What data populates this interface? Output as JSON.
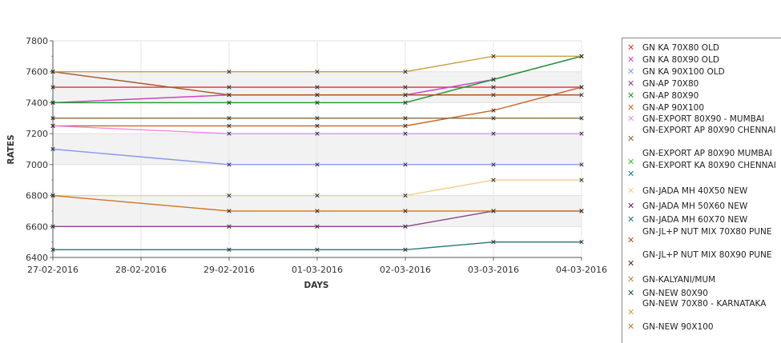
{
  "chart_data": {
    "type": "line",
    "xlabel": "DAYS",
    "ylabel": "RATES",
    "ylim": [
      6400,
      7800
    ],
    "yticks": [
      6400,
      6600,
      6800,
      7000,
      7200,
      7400,
      7600,
      7800
    ],
    "categories": [
      "27-02-2016",
      "28-02-2016",
      "29-02-2016",
      "01-03-2016",
      "02-03-2016",
      "03-03-2016",
      "04-03-2016"
    ],
    "grid": true,
    "legend_position": "right",
    "series": [
      {
        "name": "GN KA 70X80 OLD",
        "color": "#e0303a",
        "points": [
          [
            0,
            7500
          ],
          [
            2,
            7500
          ],
          [
            3,
            7500
          ],
          [
            4,
            7500
          ],
          [
            5,
            7500
          ],
          [
            6,
            7500
          ]
        ]
      },
      {
        "name": "GN KA 80X90 OLD",
        "color": "#d040c8",
        "points": [
          [
            0,
            7400
          ],
          [
            2,
            7450
          ],
          [
            3,
            7450
          ],
          [
            4,
            7450
          ],
          [
            5,
            7550
          ],
          [
            6,
            7700
          ]
        ]
      },
      {
        "name": "GN KA 90X100 OLD",
        "color": "#8899ee",
        "points": [
          [
            0,
            7100
          ],
          [
            2,
            7000
          ],
          [
            3,
            7000
          ],
          [
            4,
            7000
          ],
          [
            5,
            7000
          ],
          [
            6,
            7000
          ]
        ]
      },
      {
        "name": "GN-AP 70X80",
        "color": "#884488",
        "points": [
          [
            0,
            6600
          ],
          [
            2,
            6600
          ],
          [
            3,
            6600
          ],
          [
            4,
            6600
          ],
          [
            5,
            6700
          ],
          [
            6,
            6700
          ]
        ]
      },
      {
        "name": "GN-AP 80X90",
        "color": "#1a9a2a",
        "points": [
          [
            0,
            7400
          ],
          [
            2,
            7400
          ],
          [
            3,
            7400
          ],
          [
            4,
            7400
          ],
          [
            5,
            7550
          ],
          [
            6,
            7700
          ]
        ]
      },
      {
        "name": "GN-AP 90X100",
        "color": "#cc6622",
        "points": [
          [
            0,
            7250
          ],
          [
            2,
            7250
          ],
          [
            3,
            7250
          ],
          [
            4,
            7250
          ],
          [
            5,
            7350
          ],
          [
            6,
            7500
          ]
        ]
      },
      {
        "name": "GN-EXPORT 80X90 - MUMBAI",
        "color": "#ee88ee",
        "points": [
          [
            0,
            7250
          ],
          [
            2,
            7200
          ],
          [
            3,
            7200
          ],
          [
            4,
            7200
          ],
          [
            5,
            7200
          ],
          [
            6,
            7200
          ]
        ]
      },
      {
        "name": "GN-EXPORT AP 80X90 CHENNAI",
        "color": "#8a6a3a",
        "points": [
          [
            0,
            7300
          ],
          [
            2,
            7300
          ],
          [
            3,
            7300
          ],
          [
            4,
            7300
          ],
          [
            5,
            7300
          ],
          [
            6,
            7300
          ]
        ]
      },
      {
        "name": "GN-EXPORT AP 80X90 MUMBAI",
        "color": "#44bb44",
        "points": []
      },
      {
        "name": "GN-EXPORT KA 80X90 CHENNAI",
        "color": "#118888",
        "points": []
      },
      {
        "name": "GN-JADA MH 40X50 NEW",
        "color": "#f4cc88",
        "points": [
          [
            0,
            6800
          ],
          [
            2,
            6800
          ],
          [
            3,
            6800
          ],
          [
            4,
            6800
          ],
          [
            5,
            6900
          ],
          [
            6,
            6900
          ]
        ]
      },
      {
        "name": "GN-JADA MH 50X60 NEW",
        "color": "#662266",
        "points": []
      },
      {
        "name": "GN-JADA MH 60X70 NEW",
        "color": "#227777",
        "points": [
          [
            0,
            6450
          ],
          [
            2,
            6450
          ],
          [
            3,
            6450
          ],
          [
            4,
            6450
          ],
          [
            5,
            6500
          ],
          [
            6,
            6500
          ]
        ]
      },
      {
        "name": "GN-JL+P NUT MIX 70X80 PUNE",
        "color": "#aa5522",
        "points": [
          [
            0,
            7600
          ],
          [
            2,
            7450
          ],
          [
            3,
            7450
          ],
          [
            4,
            7450
          ],
          [
            5,
            7450
          ],
          [
            6,
            7450
          ]
        ]
      },
      {
        "name": "GN-JL+P NUT MIX 80X90 PUNE",
        "color": "#553322",
        "points": []
      },
      {
        "name": "GN-KALYANI/MUM",
        "color": "#bb8844",
        "points": []
      },
      {
        "name": "GN-NEW   80X90",
        "color": "#116633",
        "points": []
      },
      {
        "name": "GN-NEW  70X80 - KARNATAKA",
        "color": "#c8a040",
        "points": [
          [
            0,
            7600
          ],
          [
            2,
            7600
          ],
          [
            3,
            7600
          ],
          [
            4,
            7600
          ],
          [
            5,
            7700
          ],
          [
            6,
            7700
          ]
        ]
      },
      {
        "name": "GN-NEW 90X100",
        "color": "#cc7722",
        "points": [
          [
            0,
            6800
          ],
          [
            2,
            6700
          ],
          [
            3,
            6700
          ],
          [
            4,
            6700
          ],
          [
            5,
            6700
          ],
          [
            6,
            6700
          ]
        ]
      }
    ]
  }
}
